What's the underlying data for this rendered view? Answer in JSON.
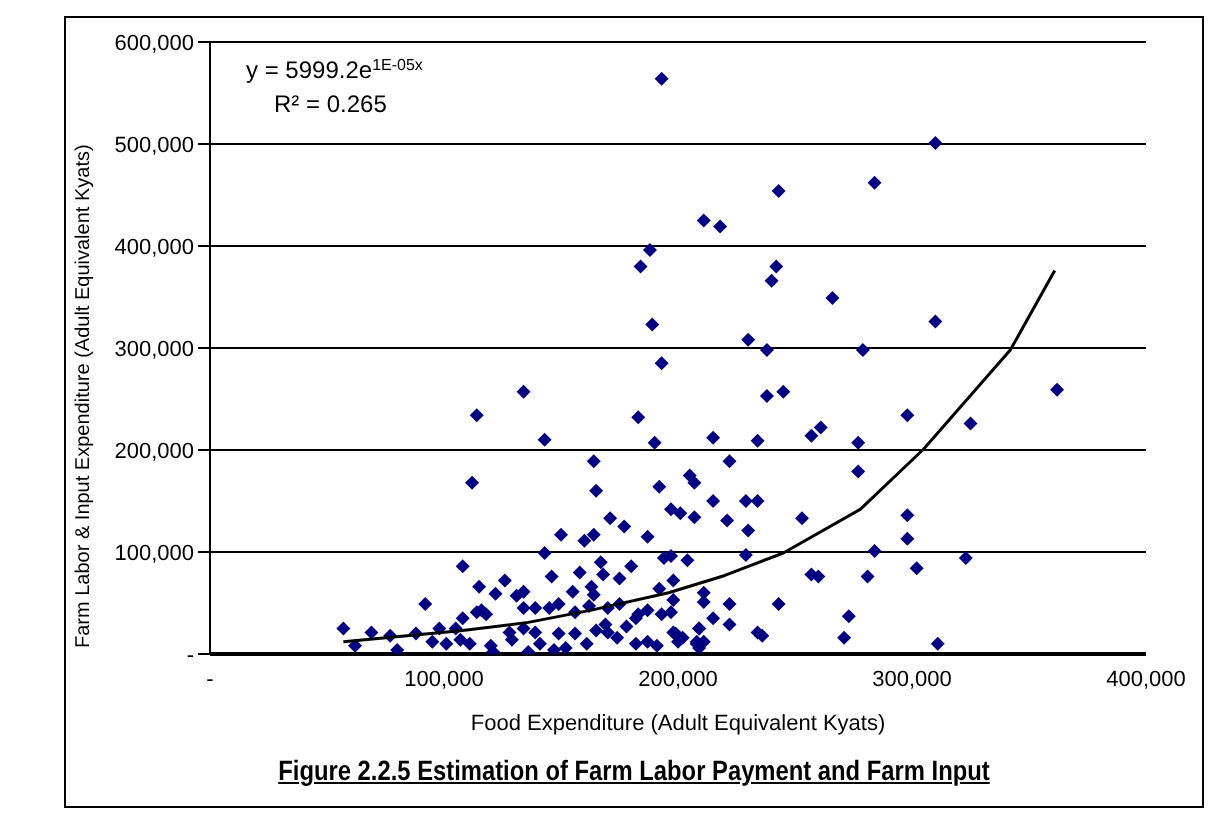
{
  "chart_data": {
    "type": "scatter",
    "title": "Figure 2.2.5 Estimation of Farm Labor Payment and Farm Input",
    "xlabel": "Food Expenditure (Adult Equivalent Kyats)",
    "ylabel": "Farm Labor & Input Expenditure (Adult Equivalent Kyats)",
    "annotations": [
      "y = 5999.2e$^{1E-05x}$",
      "R² = 0.265"
    ],
    "xlim": [
      0,
      400000
    ],
    "ylim": [
      0,
      600000
    ],
    "xticks": [
      {
        "value": 0,
        "label": "-"
      },
      {
        "value": 100000,
        "label": "100,000"
      },
      {
        "value": 200000,
        "label": "200,000"
      },
      {
        "value": 300000,
        "label": "300,000"
      },
      {
        "value": 400000,
        "label": "400,000"
      }
    ],
    "yticks": [
      {
        "value": 0,
        "label": "-"
      },
      {
        "value": 100000,
        "label": "100,000"
      },
      {
        "value": 200000,
        "label": "200,000"
      },
      {
        "value": 300000,
        "label": "300,000"
      },
      {
        "value": 400000,
        "label": "400,000"
      },
      {
        "value": 500000,
        "label": "500,000"
      },
      {
        "value": 600000,
        "label": "600,000"
      }
    ],
    "grid": "y",
    "marker": "diamond",
    "series": [
      {
        "color": "#000080",
        "x": [
          193000,
          211000,
          188000,
          184000,
          189000,
          193000,
          310000,
          284000,
          243000,
          218000,
          242000,
          240000,
          266000,
          310000,
          230000,
          238000,
          279000,
          362000,
          238000,
          245000,
          298000,
          325000,
          215000,
          234000,
          257000,
          261000,
          277000,
          222000,
          205000,
          207000,
          277000,
          215000,
          229000,
          234000,
          197000,
          201000,
          207000,
          221000,
          253000,
          298000,
          230000,
          298000,
          284000,
          197000,
          204000,
          229000,
          323000,
          302000,
          198000,
          257000,
          260000,
          281000,
          211000,
          211000,
          198000,
          197000,
          222000,
          243000,
          215000,
          222000,
          273000,
          198000,
          209000,
          234000,
          236000,
          271000,
          202000,
          208000,
          211000,
          311000,
          209000,
          134000,
          114000,
          183000,
          143000,
          190000,
          164000,
          112000,
          165000,
          192000,
          171000,
          177000,
          150000,
          164000,
          160000,
          187000,
          143000,
          194000,
          108000,
          158000,
          146000,
          167000,
          180000,
          126000,
          168000,
          175000,
          115000,
          134000,
          131000,
          122000,
          155000,
          163000,
          164000,
          192000,
          92000,
          116000,
          118000,
          134000,
          139000,
          145000,
          149000,
          156000,
          162000,
          170000,
          175000,
          183000,
          187000,
          193000,
          108000,
          114000,
          57000,
          69000,
          77000,
          88000,
          98000,
          105000,
          62000,
          80000,
          95000,
          101000,
          107000,
          111000,
          120000,
          121000,
          128000,
          129000,
          134000,
          136000,
          139000,
          141000,
          147000,
          149000,
          152000,
          156000,
          161000,
          165000,
          169000,
          170000,
          174000,
          178000,
          182000,
          182000,
          187000,
          191000,
          199000,
          200000,
          208000,
          209000
        ],
        "values": [
          564000,
          425000,
          396000,
          380000,
          323000,
          285000,
          501000,
          462000,
          454000,
          419000,
          380000,
          366000,
          349000,
          326000,
          308000,
          298000,
          298000,
          259000,
          253000,
          257000,
          234000,
          226000,
          212000,
          209000,
          214000,
          222000,
          207000,
          189000,
          175000,
          168000,
          179000,
          150000,
          150000,
          150000,
          142000,
          138000,
          134000,
          131000,
          133000,
          136000,
          121000,
          113000,
          101000,
          96000,
          92000,
          97000,
          94000,
          84000,
          72000,
          78000,
          76000,
          76000,
          60000,
          51000,
          53000,
          41000,
          49000,
          49000,
          35000,
          29000,
          37000,
          21000,
          25000,
          21000,
          18000,
          16000,
          16000,
          12000,
          12000,
          10000,
          6000,
          257000,
          234000,
          232000,
          210000,
          207000,
          189000,
          168000,
          160000,
          164000,
          133000,
          125000,
          117000,
          117000,
          111000,
          115000,
          99000,
          94000,
          86000,
          80000,
          76000,
          90000,
          86000,
          72000,
          78000,
          74000,
          66000,
          61000,
          57000,
          59000,
          61000,
          66000,
          58000,
          64000,
          49000,
          43000,
          39000,
          45000,
          45000,
          45000,
          49000,
          41000,
          47000,
          45000,
          49000,
          39000,
          43000,
          39000,
          35000,
          41000,
          25000,
          21000,
          18000,
          20000,
          25000,
          25000,
          8000,
          4000,
          12000,
          10000,
          14000,
          10000,
          8000,
          2000,
          21000,
          14000,
          25000,
          2000,
          21000,
          10000,
          4000,
          20000,
          6000,
          20000,
          10000,
          23000,
          29000,
          21000,
          16000,
          27000,
          35000,
          10000,
          12000,
          8000,
          20000,
          12000,
          10000,
          25000
        ]
      },
      {
        "type": "line",
        "color": "#000000",
        "marker": "none",
        "x": [
          57000,
          108000,
          136000,
          163000,
          196000,
          220000,
          245000,
          278000,
          305000,
          342000,
          361000
        ],
        "values": [
          12000,
          23000,
          31000,
          43000,
          60000,
          77000,
          99000,
          142000,
          201000,
          298000,
          376000
        ]
      }
    ]
  }
}
